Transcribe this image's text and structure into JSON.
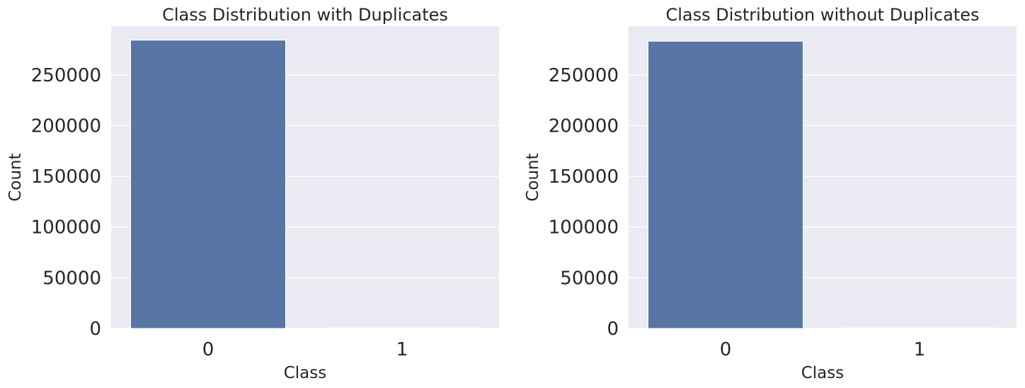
{
  "chart_data": [
    {
      "type": "bar",
      "title": "Class Distribution with Duplicates",
      "xlabel": "Class",
      "ylabel": "Count",
      "categories": [
        "0",
        "1"
      ],
      "values": [
        284315,
        492
      ],
      "ylim": [
        0,
        298000
      ],
      "yticks": [
        0,
        50000,
        100000,
        150000,
        200000,
        250000
      ],
      "ytick_labels": [
        "0",
        "50000",
        "100000",
        "150000",
        "200000",
        "250000"
      ],
      "grid": true,
      "bar_color": "#5975a4",
      "background": "#eaeaf2"
    },
    {
      "type": "bar",
      "title": "Class Distribution without Duplicates",
      "xlabel": "Class",
      "ylabel": "Count",
      "categories": [
        "0",
        "1"
      ],
      "values": [
        283253,
        473
      ],
      "ylim": [
        0,
        298000
      ],
      "yticks": [
        0,
        50000,
        100000,
        150000,
        200000,
        250000
      ],
      "ytick_labels": [
        "0",
        "50000",
        "100000",
        "150000",
        "200000",
        "250000"
      ],
      "grid": true,
      "bar_color": "#5975a4",
      "background": "#eaeaf2"
    }
  ]
}
